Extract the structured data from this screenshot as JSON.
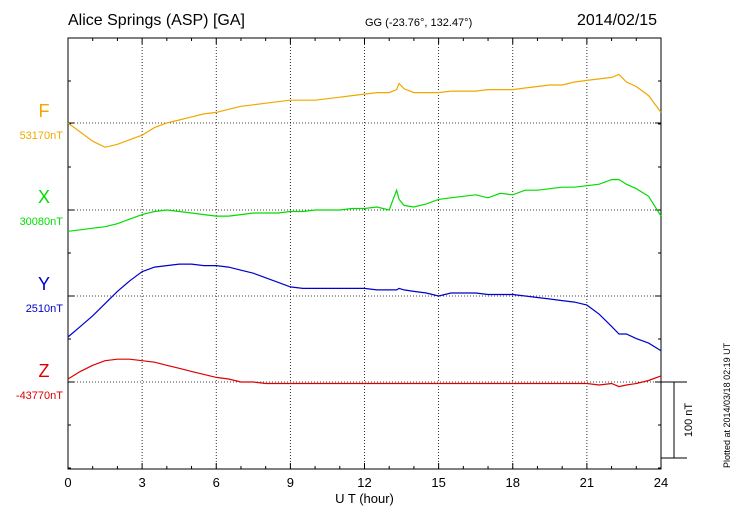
{
  "header": {
    "station": "Alice Springs (ASP)  [GA]",
    "coords": "GG (-23.76°, 132.47°)",
    "date": "2014/02/15"
  },
  "footer": {
    "plotted": "Plotted at 2014/03/18 02:19 UT"
  },
  "scale_bar": {
    "label": "100 nT",
    "value_nT": 100
  },
  "colors": {
    "F": "#f0a800",
    "X": "#00dd00",
    "Y": "#0000cc",
    "Z": "#dd0000"
  },
  "chart_data": {
    "type": "line",
    "xlabel": "U T (hour)",
    "xlim": [
      0,
      24
    ],
    "x_ticks": [
      "0",
      "3",
      "6",
      "9",
      "12",
      "15",
      "18",
      "21",
      "24"
    ],
    "grid": true,
    "series": [
      {
        "name": "F",
        "baseline_label": "53170nT",
        "baseline_nT": 53170,
        "x": [
          0,
          0.5,
          1,
          1.5,
          2,
          2.5,
          3,
          3.5,
          4,
          4.5,
          5,
          5.5,
          6,
          6.5,
          7,
          7.5,
          8,
          8.5,
          9,
          9.5,
          10,
          10.5,
          11,
          11.5,
          12,
          12.5,
          13,
          13.3,
          13.4,
          13.6,
          14,
          14.5,
          15,
          15.5,
          16,
          16.5,
          17,
          17.5,
          18,
          18.5,
          19,
          19.5,
          20,
          20.5,
          21,
          21.5,
          22,
          22.3,
          22.6,
          23,
          23.5,
          24
        ],
        "values": [
          0,
          -12,
          -24,
          -32,
          -28,
          -22,
          -16,
          -6,
          0,
          4,
          8,
          12,
          14,
          18,
          22,
          24,
          26,
          28,
          30,
          30,
          30,
          32,
          34,
          36,
          38,
          40,
          40,
          44,
          52,
          45,
          40,
          40,
          40,
          42,
          42,
          42,
          44,
          44,
          44,
          46,
          48,
          50,
          50,
          54,
          56,
          58,
          60,
          64,
          54,
          48,
          36,
          14
        ]
      },
      {
        "name": "X",
        "baseline_label": "30080nT",
        "baseline_nT": 30080,
        "x": [
          0,
          0.5,
          1,
          1.5,
          2,
          2.5,
          3,
          3.5,
          4,
          4.5,
          5,
          5.5,
          6,
          6.5,
          7,
          7.5,
          8,
          8.5,
          9,
          9.5,
          10,
          10.5,
          11,
          11.5,
          12,
          12.5,
          13,
          13.3,
          13.4,
          13.6,
          14,
          14.5,
          15,
          15.5,
          16,
          16.5,
          17,
          17.5,
          18,
          18.5,
          19,
          19.5,
          20,
          20.5,
          21,
          21.5,
          22,
          22.3,
          22.6,
          23,
          23.5,
          24
        ],
        "values": [
          -28,
          -26,
          -24,
          -22,
          -18,
          -12,
          -6,
          -2,
          0,
          -2,
          -4,
          -6,
          -8,
          -8,
          -6,
          -4,
          -4,
          -4,
          -2,
          -2,
          0,
          0,
          0,
          2,
          2,
          4,
          0,
          26,
          14,
          6,
          4,
          8,
          14,
          16,
          18,
          20,
          16,
          22,
          20,
          26,
          26,
          28,
          30,
          30,
          32,
          34,
          40,
          40,
          34,
          28,
          18,
          -8
        ]
      },
      {
        "name": "Y",
        "baseline_label": "2510nT",
        "baseline_nT": 2510,
        "x": [
          0,
          0.5,
          1,
          1.5,
          2,
          2.5,
          3,
          3.5,
          4,
          4.5,
          5,
          5.5,
          6,
          6.5,
          7,
          7.5,
          8,
          8.5,
          9,
          9.5,
          10,
          10.5,
          11,
          11.5,
          12,
          12.5,
          13,
          13.3,
          13.4,
          13.6,
          14,
          14.5,
          15,
          15.5,
          16,
          16.5,
          17,
          17.5,
          18,
          18.5,
          19,
          19.5,
          20,
          20.5,
          21,
          21.5,
          22,
          22.3,
          22.6,
          23,
          23.5,
          24
        ],
        "values": [
          -54,
          -40,
          -26,
          -10,
          6,
          20,
          32,
          38,
          40,
          42,
          42,
          40,
          40,
          38,
          34,
          30,
          24,
          18,
          12,
          10,
          10,
          10,
          10,
          10,
          10,
          8,
          8,
          8,
          10,
          8,
          6,
          4,
          0,
          4,
          4,
          4,
          2,
          2,
          2,
          0,
          -2,
          -4,
          -6,
          -8,
          -12,
          -24,
          -40,
          -50,
          -50,
          -56,
          -62,
          -72
        ]
      },
      {
        "name": "Z",
        "baseline_label": "-43770nT",
        "baseline_nT": -43770,
        "x": [
          0,
          0.5,
          1,
          1.5,
          2,
          2.5,
          3,
          3.5,
          4,
          4.5,
          5,
          5.5,
          6,
          6.5,
          7,
          7.5,
          8,
          8.5,
          9,
          9.5,
          10,
          10.5,
          11,
          11.5,
          12,
          12.5,
          13,
          13.3,
          13.4,
          13.6,
          14,
          14.5,
          15,
          15.5,
          16,
          16.5,
          17,
          17.5,
          18,
          18.5,
          19,
          19.5,
          20,
          20.5,
          21,
          21.5,
          22,
          22.3,
          22.6,
          23,
          23.5,
          24
        ],
        "values": [
          4,
          14,
          22,
          28,
          30,
          30,
          28,
          26,
          22,
          18,
          14,
          10,
          6,
          4,
          0,
          0,
          -2,
          -2,
          -2,
          -2,
          -2,
          -2,
          -2,
          -2,
          -2,
          -2,
          -2,
          -2,
          -2,
          -2,
          -2,
          -2,
          -2,
          -2,
          -2,
          -2,
          -2,
          -2,
          -2,
          -2,
          -2,
          -2,
          -2,
          -2,
          -2,
          -4,
          -2,
          -6,
          -4,
          -2,
          2,
          8
        ]
      }
    ]
  }
}
